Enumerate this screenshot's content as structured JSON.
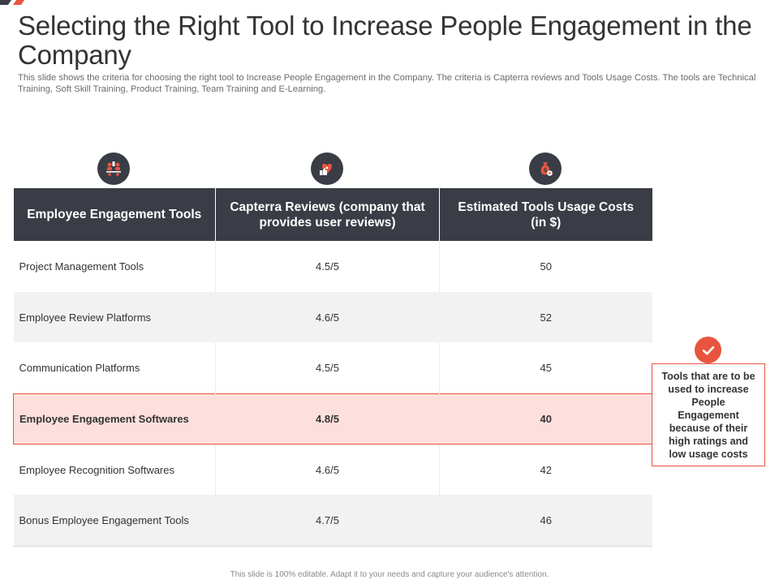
{
  "slide": {
    "title": "Selecting the Right Tool to Increase People Engagement in the Company",
    "subtitle": "This slide shows the criteria for choosing the right tool to Increase People Engagement in the Company. The criteria is Capterra reviews and Tools Usage Costs. The tools are Technical Training, Soft Skill Training, Product Training, Team Training and E-Learning.",
    "footer": "This slide is 100% editable. Adapt it to your needs and capture your audience's attention."
  },
  "icons": {
    "col1": "team-meeting-icon",
    "col2": "heart-thumbs-up-icon",
    "col3": "money-bag-gear-icon",
    "callout": "checkmark-icon"
  },
  "colors": {
    "dark": "#3a3d46",
    "accent": "#e8553f",
    "highlight": "#fde0dd",
    "shade": "#f2f2f2"
  },
  "table": {
    "headers": [
      "Employee Engagement Tools",
      "Capterra Reviews (company that provides user reviews)",
      "Estimated Tools Usage Costs (in $)"
    ],
    "rows": [
      {
        "tool": "Project Management Tools",
        "review": "4.5/5",
        "cost": "50"
      },
      {
        "tool": "Employee Review Platforms",
        "review": "4.6/5",
        "cost": "52"
      },
      {
        "tool": "Communication Platforms",
        "review": "4.5/5",
        "cost": "45"
      },
      {
        "tool": "Employee Engagement Softwares",
        "review": "4.8/5",
        "cost": "40"
      },
      {
        "tool": "Employee Recognition Softwares",
        "review": "4.6/5",
        "cost": "42"
      },
      {
        "tool": "Bonus Employee Engagement Tools",
        "review": "4.7/5",
        "cost": "46"
      }
    ]
  },
  "callout": {
    "text": "Tools that are to be used to increase People Engagement because of their high ratings and low usage costs"
  }
}
